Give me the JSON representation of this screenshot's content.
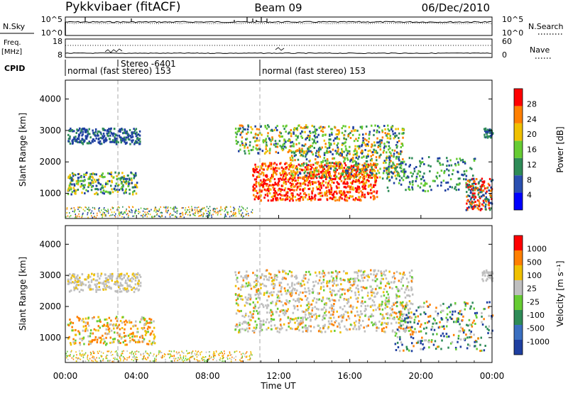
{
  "header": {
    "title": "Pykkvibaer (fitACF)",
    "beam": "Beam 09",
    "date": "06/Dec/2010"
  },
  "chart_data": [
    {
      "type": "line",
      "panel": "noise",
      "left_label": "N.Sky",
      "right_label": "N.Search",
      "left_ticks": [
        "10^5",
        "10^0"
      ],
      "right_ticks": [
        "10^5",
        "10^0"
      ],
      "series": [
        {
          "name": "N.Sky",
          "style": "solid",
          "level": 0.72
        },
        {
          "name": "N.Search",
          "style": "dotted",
          "level": 0.7
        }
      ]
    },
    {
      "type": "line",
      "panel": "frequency",
      "left_label_1": "Freq.",
      "left_label_2": "[MHz]",
      "right_label": "Nave",
      "left_ticks": [
        "18",
        "8"
      ],
      "right_ticks": [
        "60",
        "0"
      ],
      "series": [
        {
          "name": "Freq.",
          "style": "solid"
        },
        {
          "name": "Nave",
          "style": "dotted"
        }
      ]
    },
    {
      "panel": "cpid",
      "label": "CPID",
      "segments": [
        {
          "start_h": 0,
          "end_h": 11,
          "text": "normal (fast stereo) 153"
        },
        {
          "start_h": 11,
          "end_h": 24,
          "text": "normal (fast stereo) 153"
        }
      ],
      "stereo_text": "Stereo -6401",
      "stereo_start_h": 3
    },
    {
      "type": "heatmap",
      "panel": "power",
      "ylabel": "Slant Range [km]",
      "ylim": [
        200,
        4600
      ],
      "yticks": [
        "1000",
        "2000",
        "3000",
        "4000"
      ],
      "colorbar_label": "Power [dB]",
      "colorbar_ticks": [
        "28",
        "24",
        "20",
        "16",
        "12",
        "8",
        "4"
      ],
      "colorbar_colors": [
        "#0000ff",
        "#2a4fb0",
        "#2e8b57",
        "#66cc33",
        "#f0c000",
        "#ff7f00",
        "#ff0000"
      ]
    },
    {
      "type": "heatmap",
      "panel": "velocity",
      "ylabel": "Slant Range [km]",
      "ylim": [
        200,
        4600
      ],
      "yticks": [
        "1000",
        "2000",
        "3000",
        "4000"
      ],
      "colorbar_label": "Velocity [m s⁻¹]",
      "colorbar_ticks": [
        "1000",
        "500",
        "100",
        "25",
        "-25",
        "-100",
        "-500",
        "-1000"
      ],
      "colorbar_colors": [
        "#1e3fa0",
        "#3a6fc0",
        "#2e8b57",
        "#66cc33",
        "#bfbfbf",
        "#f0c000",
        "#ff7f00",
        "#ff0000"
      ]
    }
  ],
  "xaxis": {
    "label": "Time UT",
    "ticks": [
      "00:00",
      "04:00",
      "08:00",
      "12:00",
      "16:00",
      "20:00",
      "00:00"
    ]
  }
}
